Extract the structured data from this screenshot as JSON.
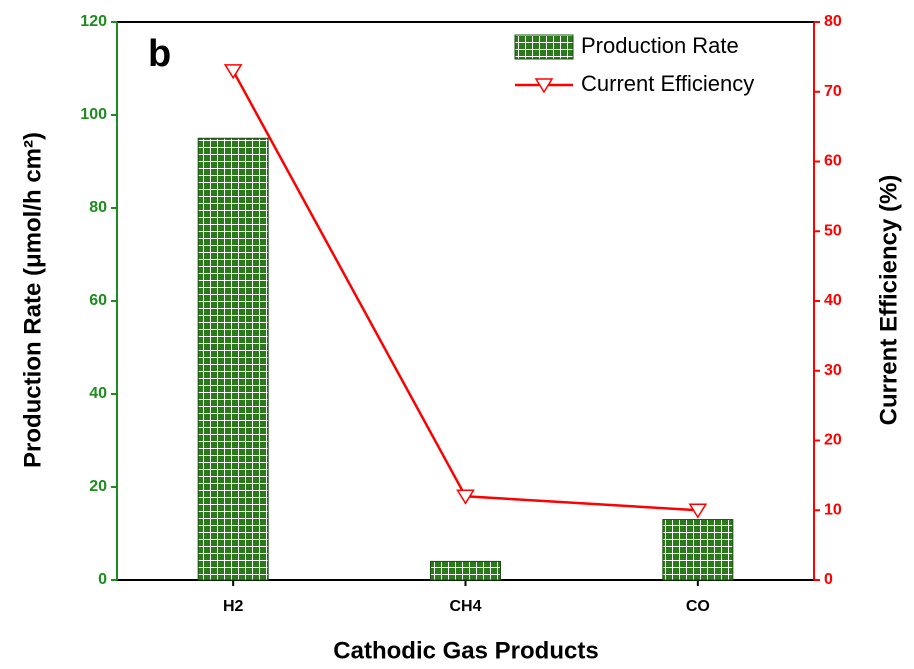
{
  "chart_data": {
    "type": "bar",
    "annotation": "b",
    "xlabel": "Cathodic Gas Products",
    "ylabel": "Production Rate (μmol/h cm²)",
    "y2label": "Current Efficiency (%)",
    "categories": [
      "H2",
      "CH4",
      "CO"
    ],
    "series": [
      {
        "name": "Production Rate",
        "type": "bar",
        "color": "#2a7a1c",
        "values": [
          95,
          4,
          13
        ]
      },
      {
        "name": "Current Efficiency",
        "type": "line",
        "axis": "y2",
        "color": "#ff0000",
        "values": [
          73,
          12,
          10
        ]
      }
    ],
    "ylim": [
      0,
      120
    ],
    "yticks": [
      0,
      20,
      40,
      60,
      80,
      100,
      120
    ],
    "ycolor": "#1e8c1e",
    "y2lim": [
      0,
      80
    ],
    "y2ticks": [
      0,
      10,
      20,
      30,
      40,
      50,
      60,
      70,
      80
    ],
    "y2color": "#ff0000",
    "legend": "upper right"
  }
}
